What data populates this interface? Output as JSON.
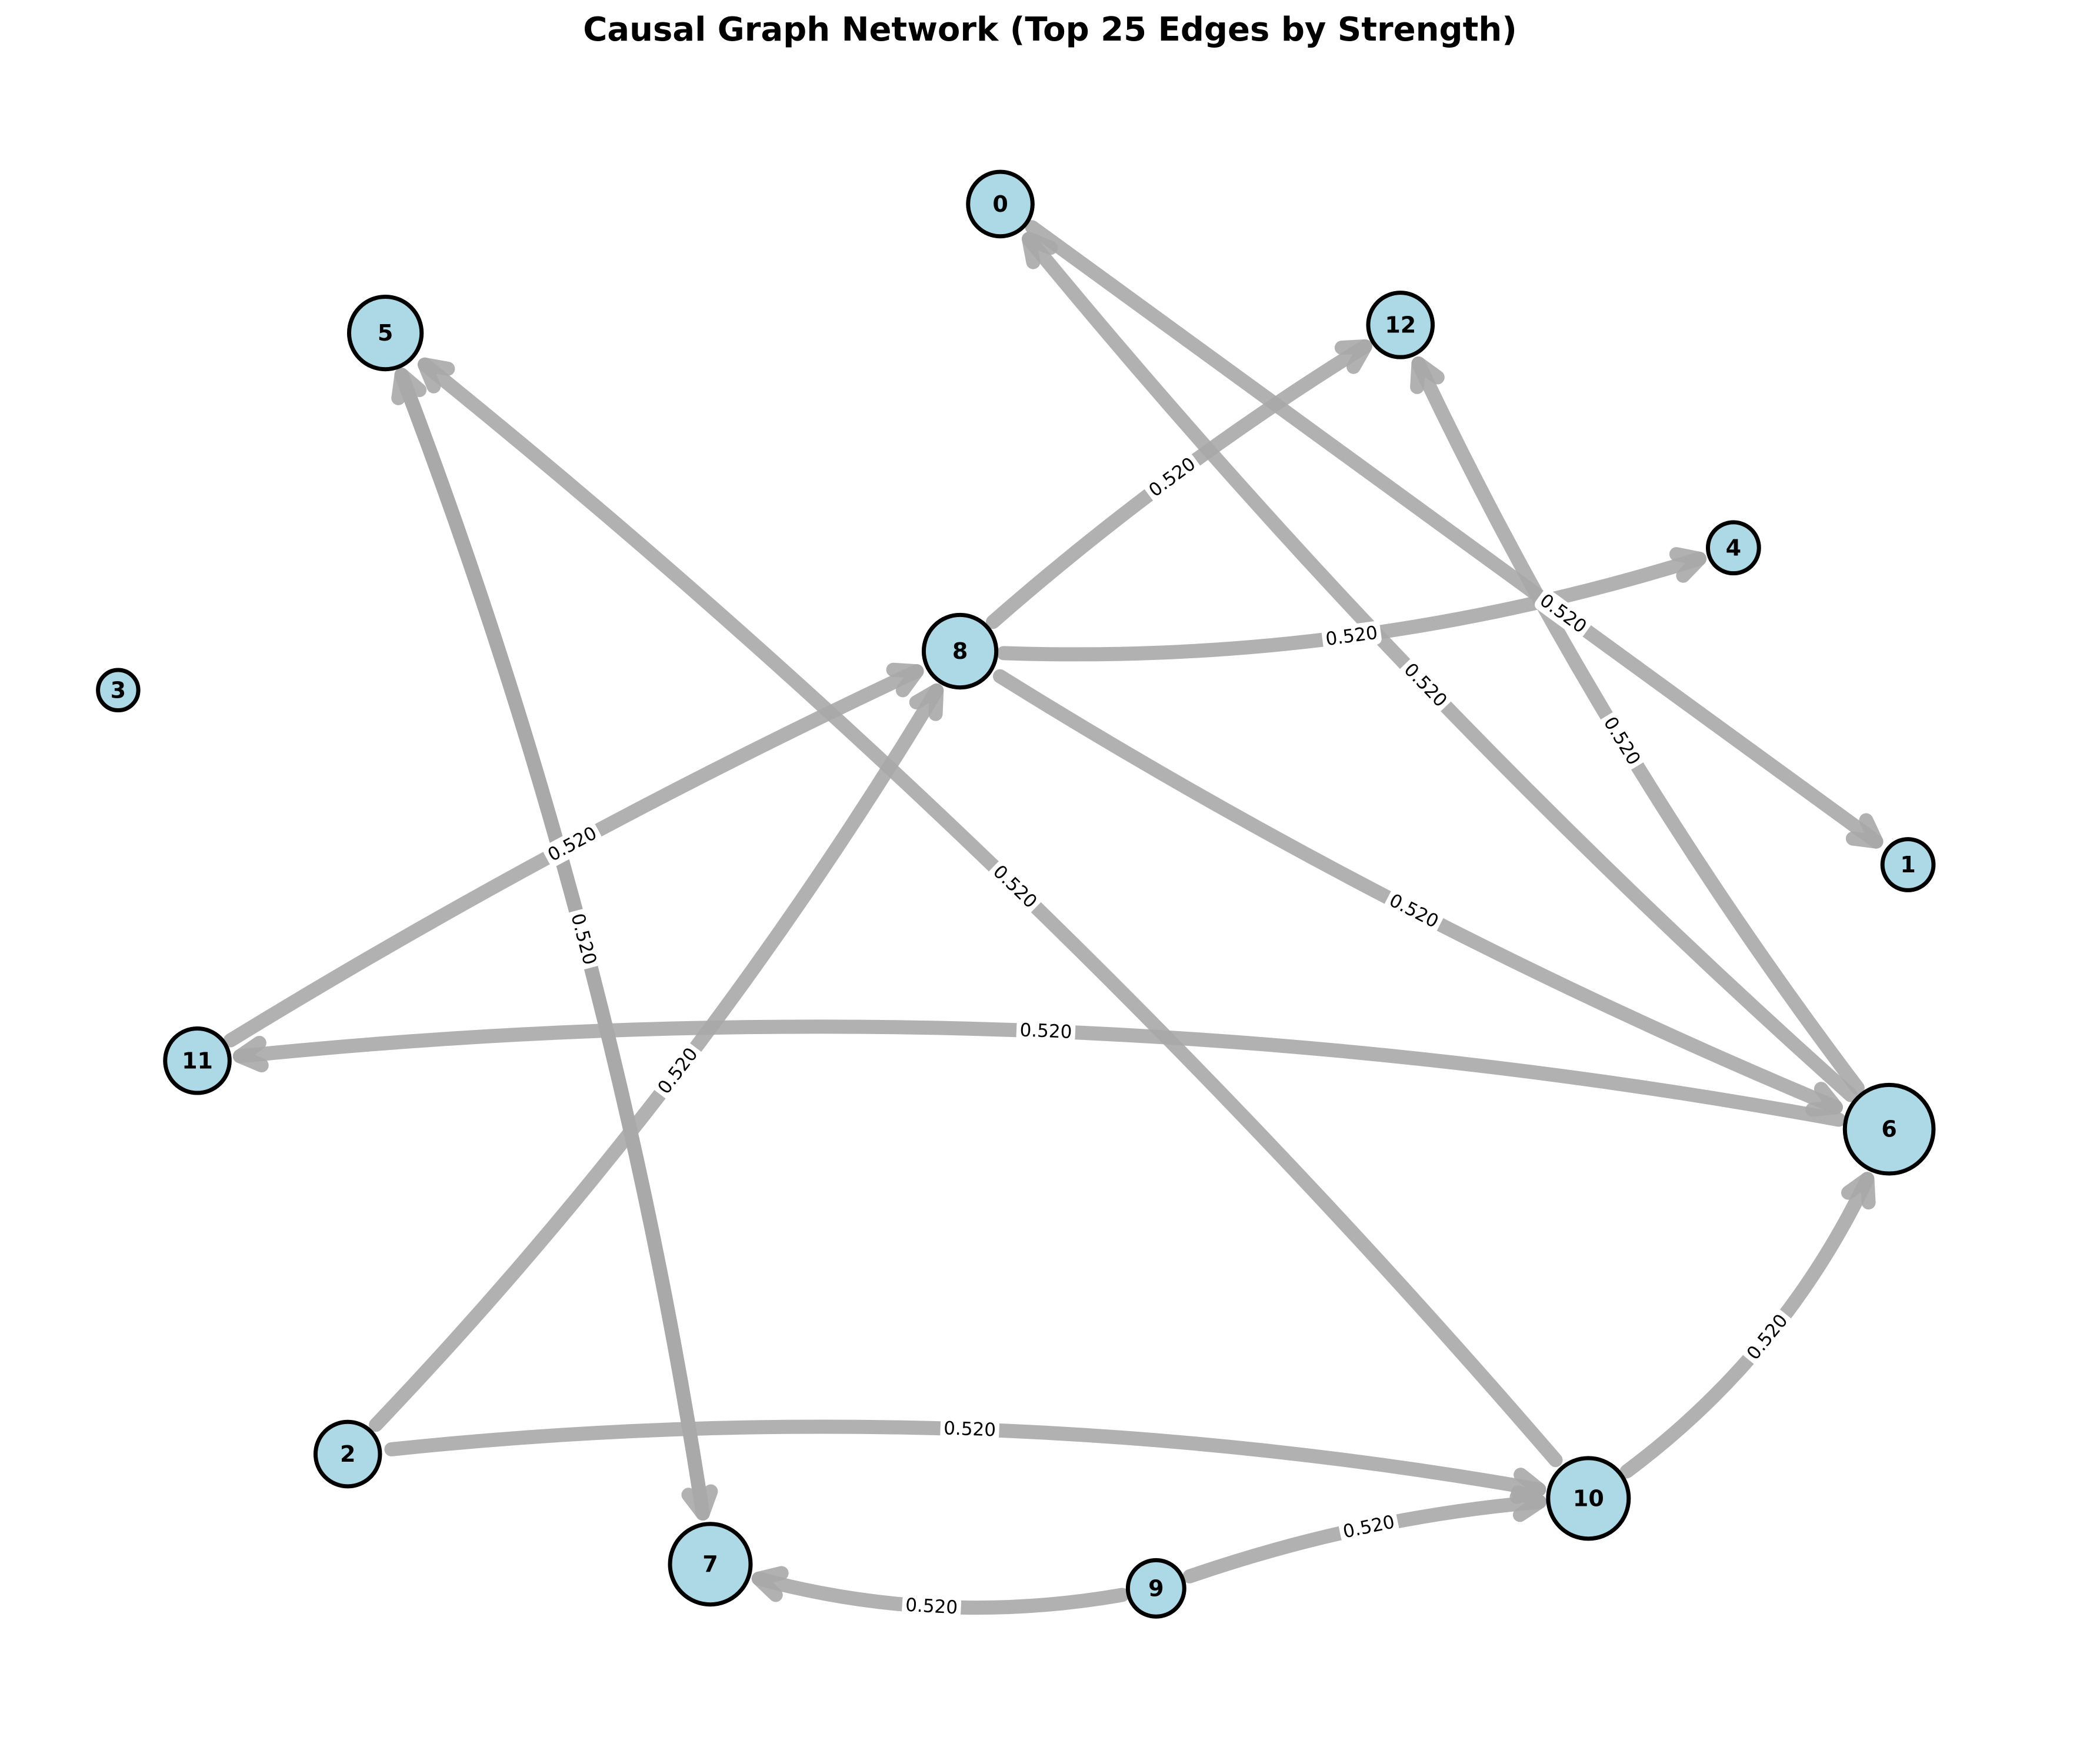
{
  "title": "Causal Graph Network (Top 25 Edges by Strength)",
  "graph": {
    "nodes": [
      {
        "id": "0",
        "label": "0"
      },
      {
        "id": "1",
        "label": "1"
      },
      {
        "id": "2",
        "label": "2"
      },
      {
        "id": "3",
        "label": "3"
      },
      {
        "id": "4",
        "label": "4"
      },
      {
        "id": "5",
        "label": "5"
      },
      {
        "id": "6",
        "label": "6"
      },
      {
        "id": "7",
        "label": "7"
      },
      {
        "id": "8",
        "label": "8"
      },
      {
        "id": "9",
        "label": "9"
      },
      {
        "id": "10",
        "label": "10"
      },
      {
        "id": "11",
        "label": "11"
      },
      {
        "id": "12",
        "label": "12"
      }
    ],
    "edges": [
      {
        "source": "0",
        "target": "1",
        "label": "0.520"
      },
      {
        "source": "6",
        "target": "0",
        "label": "0.520"
      },
      {
        "source": "8",
        "target": "4",
        "label": "0.520"
      },
      {
        "source": "8",
        "target": "12",
        "label": "0.520"
      },
      {
        "source": "8",
        "target": "6",
        "label": "0.520"
      },
      {
        "source": "6",
        "target": "12",
        "label": "0.520"
      },
      {
        "source": "6",
        "target": "11",
        "label": "0.520"
      },
      {
        "source": "10",
        "target": "6",
        "label": "0.520"
      },
      {
        "source": "10",
        "target": "5",
        "label": "0.520"
      },
      {
        "source": "11",
        "target": "8",
        "label": "0.520"
      },
      {
        "source": "2",
        "target": "8",
        "label": "0.520"
      },
      {
        "source": "5",
        "target": "7",
        "label": "0.520"
      },
      {
        "source": "7",
        "target": "5",
        "label": "0.520"
      },
      {
        "source": "2",
        "target": "10",
        "label": "0.520"
      },
      {
        "source": "9",
        "target": "10",
        "label": "0.520"
      },
      {
        "source": "9",
        "target": "7",
        "label": "0.520"
      }
    ]
  }
}
